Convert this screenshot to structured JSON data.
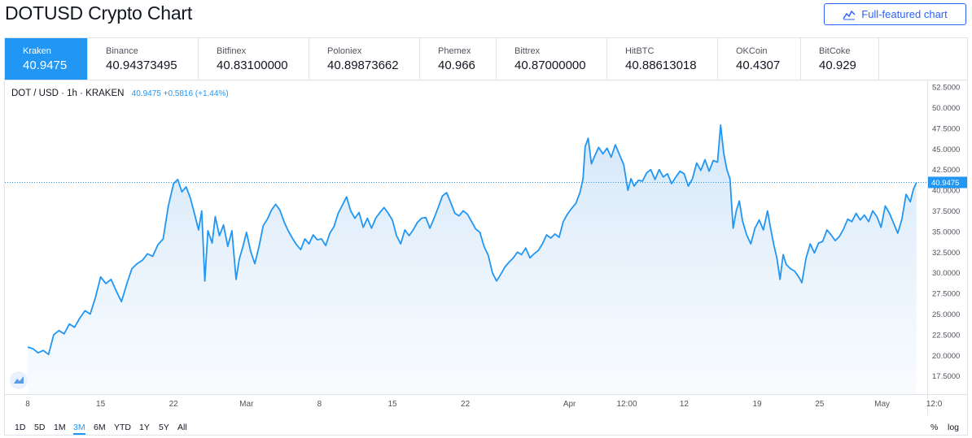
{
  "page": {
    "title": "DOTUSD Crypto Chart",
    "full_button": "Full-featured chart"
  },
  "exchanges": [
    {
      "name": "Kraken",
      "price": "40.9475"
    },
    {
      "name": "Binance",
      "price": "40.94373495"
    },
    {
      "name": "Bitfinex",
      "price": "40.83100000"
    },
    {
      "name": "Poloniex",
      "price": "40.89873662"
    },
    {
      "name": "Phemex",
      "price": "40.966"
    },
    {
      "name": "Bittrex",
      "price": "40.87000000"
    },
    {
      "name": "HitBTC",
      "price": "40.88613018"
    },
    {
      "name": "OKCoin",
      "price": "40.4307"
    },
    {
      "name": "BitCoke",
      "price": "40.929"
    }
  ],
  "legend": {
    "symbol": "DOT / USD · 1h · KRAKEN",
    "values": "40.9475 +0.5816 (+1.44%)"
  },
  "timeframes": [
    "1D",
    "5D",
    "1M",
    "3M",
    "6M",
    "YTD",
    "1Y",
    "5Y",
    "All"
  ],
  "selected_timeframe": "3M",
  "scale_options": [
    "%",
    "log"
  ],
  "colors": {
    "accent": "#2196f3",
    "line": "#2196f3",
    "fill_top": "#cfe4f8",
    "fill_bottom": "#f4f9fe",
    "button": "#2962ff"
  },
  "chart_data": {
    "type": "area",
    "title": "DOT / USD · 1h · KRAKEN",
    "ylim": [
      15.3,
      53.3
    ],
    "yticks": [
      "17.5000",
      "20.0000",
      "22.5000",
      "25.0000",
      "27.5000",
      "30.0000",
      "32.5000",
      "35.0000",
      "37.5000",
      "40.0000",
      "42.5000",
      "45.0000",
      "47.5000",
      "50.0000",
      "52.5000"
    ],
    "ytick_values": [
      17.5,
      20,
      22.5,
      25,
      27.5,
      30,
      32.5,
      35,
      37.5,
      40,
      42.5,
      45,
      47.5,
      50,
      52.5
    ],
    "xlabels": [
      "8",
      "15",
      "22",
      "Mar",
      "8",
      "15",
      "22",
      "Apr",
      "12:00",
      "12",
      "19",
      "25",
      "May",
      "12:0"
    ],
    "xlabel_positions": [
      0.0,
      7.0,
      14.0,
      21.0,
      28.0,
      35.0,
      42.0,
      52.0,
      57.5,
      63.0,
      70.0,
      76.0,
      82.0,
      87.0
    ],
    "x_range": [
      0,
      87.5
    ],
    "last_value": 40.9475,
    "last_label": "40.9475",
    "series": [
      {
        "name": "DOT/USD",
        "points": [
          [
            0,
            21.0
          ],
          [
            0.5,
            20.8
          ],
          [
            1,
            20.3
          ],
          [
            1.5,
            20.6
          ],
          [
            2,
            20.1
          ],
          [
            2.5,
            22.5
          ],
          [
            3,
            23.0
          ],
          [
            3.5,
            22.6
          ],
          [
            4,
            23.8
          ],
          [
            4.5,
            23.4
          ],
          [
            5,
            24.5
          ],
          [
            5.5,
            25.4
          ],
          [
            6,
            25.0
          ],
          [
            6.5,
            27.0
          ],
          [
            7,
            29.5
          ],
          [
            7.5,
            28.7
          ],
          [
            8,
            29.2
          ],
          [
            8.5,
            27.8
          ],
          [
            9,
            26.5
          ],
          [
            9.5,
            28.6
          ],
          [
            10,
            30.5
          ],
          [
            10.5,
            31.1
          ],
          [
            11,
            31.5
          ],
          [
            11.5,
            32.3
          ],
          [
            12,
            32.0
          ],
          [
            12.5,
            33.4
          ],
          [
            13,
            34.1
          ],
          [
            13.5,
            38.1
          ],
          [
            14,
            40.8
          ],
          [
            14.4,
            41.3
          ],
          [
            14.8,
            39.8
          ],
          [
            15.2,
            40.4
          ],
          [
            15.6,
            39.1
          ],
          [
            16,
            37.2
          ],
          [
            16.4,
            35.2
          ],
          [
            16.7,
            37.5
          ],
          [
            17,
            29.0
          ],
          [
            17.3,
            35.1
          ],
          [
            17.7,
            33.6
          ],
          [
            18,
            36.8
          ],
          [
            18.4,
            34.5
          ],
          [
            18.8,
            35.8
          ],
          [
            19.2,
            33.2
          ],
          [
            19.6,
            35.1
          ],
          [
            20,
            29.2
          ],
          [
            20.3,
            31.6
          ],
          [
            20.7,
            33.4
          ],
          [
            21,
            34.9
          ],
          [
            21.4,
            32.6
          ],
          [
            21.8,
            31.1
          ],
          [
            22.2,
            33.2
          ],
          [
            22.6,
            35.7
          ],
          [
            23,
            36.5
          ],
          [
            23.4,
            37.6
          ],
          [
            23.8,
            38.3
          ],
          [
            24.2,
            37.6
          ],
          [
            24.6,
            36.2
          ],
          [
            25,
            35.1
          ],
          [
            25.4,
            34.2
          ],
          [
            25.8,
            33.4
          ],
          [
            26.2,
            32.8
          ],
          [
            26.6,
            34.1
          ],
          [
            27,
            33.5
          ],
          [
            27.4,
            34.6
          ],
          [
            27.8,
            34.0
          ],
          [
            28.2,
            34.1
          ],
          [
            28.6,
            33.3
          ],
          [
            29,
            34.8
          ],
          [
            29.4,
            35.6
          ],
          [
            29.8,
            37.2
          ],
          [
            30.2,
            38.2
          ],
          [
            30.6,
            39.2
          ],
          [
            31,
            37.5
          ],
          [
            31.4,
            36.6
          ],
          [
            31.8,
            37.3
          ],
          [
            32.2,
            35.5
          ],
          [
            32.6,
            36.6
          ],
          [
            33,
            35.4
          ],
          [
            33.4,
            36.6
          ],
          [
            33.8,
            37.3
          ],
          [
            34.2,
            37.9
          ],
          [
            34.6,
            37.2
          ],
          [
            35,
            36.4
          ],
          [
            35.4,
            34.5
          ],
          [
            35.8,
            33.5
          ],
          [
            36.2,
            35.2
          ],
          [
            36.6,
            34.5
          ],
          [
            37,
            35.2
          ],
          [
            37.4,
            36.1
          ],
          [
            37.8,
            36.6
          ],
          [
            38.2,
            36.7
          ],
          [
            38.6,
            35.4
          ],
          [
            39,
            36.6
          ],
          [
            39.4,
            37.9
          ],
          [
            39.8,
            39.3
          ],
          [
            40.2,
            39.7
          ],
          [
            40.6,
            38.5
          ],
          [
            41,
            37.2
          ],
          [
            41.4,
            36.9
          ],
          [
            41.8,
            37.5
          ],
          [
            42.2,
            37.1
          ],
          [
            42.6,
            36.2
          ],
          [
            43,
            35.3
          ],
          [
            43.4,
            34.9
          ],
          [
            43.8,
            33.2
          ],
          [
            44.2,
            32.1
          ],
          [
            44.6,
            30.0
          ],
          [
            45,
            29.0
          ],
          [
            45.4,
            29.8
          ],
          [
            45.8,
            30.7
          ],
          [
            46.2,
            31.3
          ],
          [
            46.6,
            31.8
          ],
          [
            47,
            32.5
          ],
          [
            47.4,
            32.2
          ],
          [
            47.8,
            33.0
          ],
          [
            48.2,
            31.8
          ],
          [
            48.6,
            32.3
          ],
          [
            49,
            32.7
          ],
          [
            49.4,
            33.5
          ],
          [
            49.8,
            34.6
          ],
          [
            50.2,
            34.2
          ],
          [
            50.6,
            34.7
          ],
          [
            51,
            34.3
          ],
          [
            51.4,
            36.2
          ],
          [
            51.8,
            37.1
          ],
          [
            52.2,
            37.8
          ],
          [
            52.6,
            38.4
          ],
          [
            53,
            39.7
          ],
          [
            53.3,
            41.4
          ],
          [
            53.5,
            45.3
          ],
          [
            53.8,
            46.3
          ],
          [
            54.1,
            43.2
          ],
          [
            54.4,
            44.1
          ],
          [
            54.8,
            45.2
          ],
          [
            55.2,
            44.4
          ],
          [
            55.6,
            45.1
          ],
          [
            56,
            44.0
          ],
          [
            56.4,
            45.5
          ],
          [
            56.8,
            44.3
          ],
          [
            57.2,
            43.1
          ],
          [
            57.6,
            40.0
          ],
          [
            57.9,
            41.4
          ],
          [
            58.2,
            40.5
          ],
          [
            58.6,
            41.2
          ],
          [
            59,
            41.1
          ],
          [
            59.4,
            42.1
          ],
          [
            59.8,
            42.5
          ],
          [
            60.2,
            41.3
          ],
          [
            60.6,
            42.5
          ],
          [
            61,
            41.6
          ],
          [
            61.4,
            42.0
          ],
          [
            61.8,
            40.8
          ],
          [
            62.2,
            41.6
          ],
          [
            62.6,
            42.3
          ],
          [
            63,
            42.0
          ],
          [
            63.4,
            40.5
          ],
          [
            63.8,
            41.4
          ],
          [
            64.2,
            43.3
          ],
          [
            64.6,
            42.4
          ],
          [
            65,
            43.7
          ],
          [
            65.4,
            42.3
          ],
          [
            65.8,
            43.6
          ],
          [
            66.2,
            43.4
          ],
          [
            66.5,
            47.9
          ],
          [
            66.8,
            44.5
          ],
          [
            67.1,
            42.5
          ],
          [
            67.4,
            41.4
          ],
          [
            67.7,
            35.4
          ],
          [
            68,
            37.5
          ],
          [
            68.3,
            38.7
          ],
          [
            68.6,
            36.3
          ],
          [
            69,
            34.6
          ],
          [
            69.4,
            33.5
          ],
          [
            69.8,
            35.4
          ],
          [
            70.2,
            36.4
          ],
          [
            70.6,
            35.2
          ],
          [
            71,
            37.5
          ],
          [
            71.3,
            35.4
          ],
          [
            71.6,
            33.4
          ],
          [
            71.9,
            31.8
          ],
          [
            72.2,
            29.2
          ],
          [
            72.5,
            32.2
          ],
          [
            72.8,
            31.0
          ],
          [
            73.2,
            30.5
          ],
          [
            73.6,
            30.2
          ],
          [
            74,
            29.5
          ],
          [
            74.3,
            28.8
          ],
          [
            74.7,
            31.8
          ],
          [
            75.1,
            33.5
          ],
          [
            75.5,
            32.4
          ],
          [
            75.9,
            33.6
          ],
          [
            76.3,
            33.8
          ],
          [
            76.7,
            35.2
          ],
          [
            77.1,
            34.6
          ],
          [
            77.5,
            33.9
          ],
          [
            77.9,
            34.4
          ],
          [
            78.3,
            35.3
          ],
          [
            78.7,
            36.5
          ],
          [
            79.1,
            36.2
          ],
          [
            79.5,
            37.2
          ],
          [
            79.9,
            36.4
          ],
          [
            80.3,
            37.0
          ],
          [
            80.7,
            36.2
          ],
          [
            81.1,
            37.5
          ],
          [
            81.5,
            36.8
          ],
          [
            81.9,
            35.5
          ],
          [
            82.3,
            38.1
          ],
          [
            82.7,
            37.2
          ],
          [
            83.1,
            36.0
          ],
          [
            83.5,
            34.8
          ],
          [
            83.9,
            36.5
          ],
          [
            84.3,
            39.5
          ],
          [
            84.7,
            38.6
          ],
          [
            85,
            40.1
          ],
          [
            85.3,
            40.9475
          ]
        ]
      }
    ]
  }
}
